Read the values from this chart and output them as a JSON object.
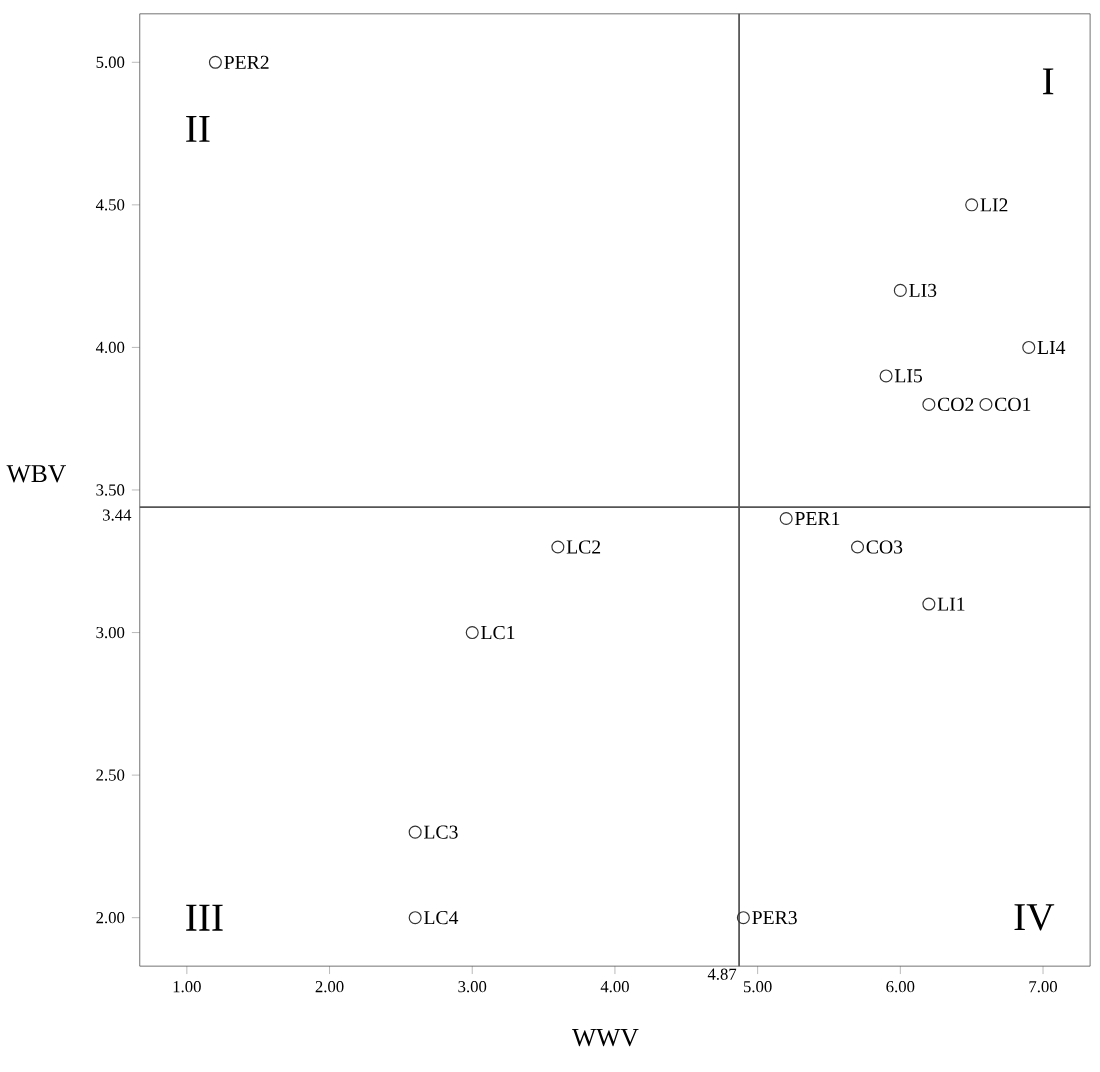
{
  "chart_data": {
    "type": "scatter",
    "xlabel": "WWV",
    "ylabel": "WBV",
    "annotations": [
      "I",
      "II",
      "III",
      "IV"
    ],
    "series": [
      {
        "color": "#333333",
        "x": [
          6.2,
          6.6,
          5.7,
          6.2,
          6.5,
          6.0,
          6.9,
          5.9,
          3.0,
          3.6,
          2.6,
          2.6,
          5.2,
          1.2,
          4.9
        ],
        "values": [
          3.8,
          3.8,
          3.3,
          3.1,
          4.5,
          4.2,
          4.0,
          3.9,
          3.0,
          3.3,
          2.3,
          2.0,
          3.4,
          5.0,
          2.0
        ],
        "value_labels": [
          "CO2",
          "CO1",
          "CO3",
          "LI1",
          "LI2",
          "LI3",
          "LI4",
          "LI5",
          "LC1",
          "LC2",
          "LC3",
          "LC4",
          "PER1",
          "PER2",
          "PER3"
        ]
      }
    ],
    "xlim": [
      0.67,
      7.33
    ],
    "ylim": [
      1.83,
      5.17
    ],
    "xticks": [
      {
        "value": 1,
        "label": "1.00"
      },
      {
        "value": 2,
        "label": "2.00"
      },
      {
        "value": 3,
        "label": "3.00"
      },
      {
        "value": 4,
        "label": "4.00"
      },
      {
        "value": 5,
        "label": "5.00"
      },
      {
        "value": 6,
        "label": "6.00"
      },
      {
        "value": 7,
        "label": "7.00"
      }
    ],
    "yticks": [
      {
        "value": 2,
        "label": "2.00"
      },
      {
        "value": 2.5,
        "label": "2.50"
      },
      {
        "value": 3,
        "label": "3.00"
      },
      {
        "value": 3.5,
        "label": "3.50"
      },
      {
        "value": 4,
        "label": "4.00"
      },
      {
        "value": 4.5,
        "label": "4.50"
      },
      {
        "value": 5,
        "label": "5.00"
      }
    ],
    "ref_lines": [
      {
        "axis": "x",
        "value": 4.87,
        "label": "4.87",
        "color": "#555555"
      },
      {
        "axis": "y",
        "value": 3.44,
        "label": "3.44",
        "color": "#555555"
      }
    ],
    "marker": "circle",
    "grid": false
  }
}
